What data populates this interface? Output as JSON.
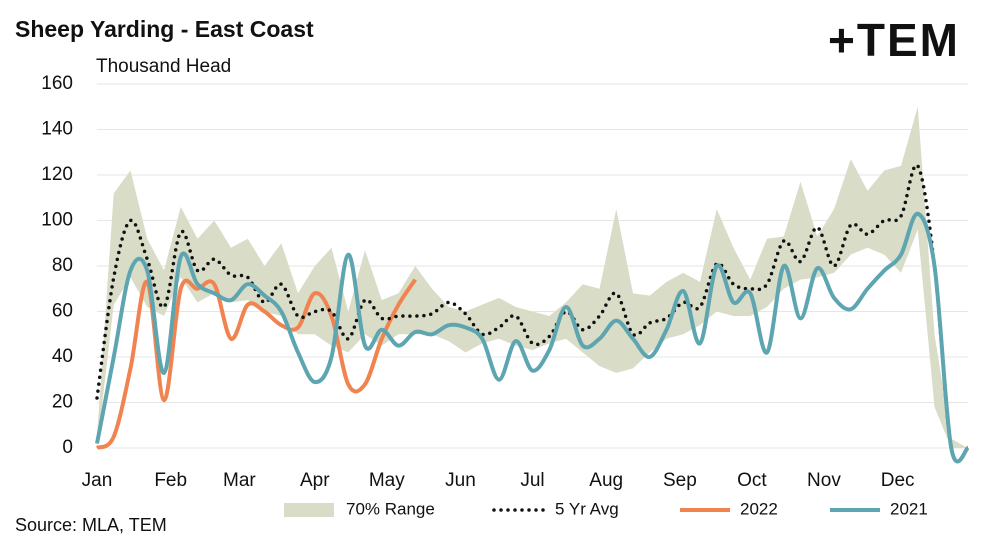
{
  "chart_data": {
    "type": "line",
    "title": "Sheep Yarding - East Coast",
    "subtitle": "Thousand Head",
    "source": "Source: MLA, TEM",
    "logo": "+TEM",
    "x": [
      1,
      2,
      3,
      4,
      5,
      6,
      7,
      8,
      9,
      10,
      11,
      12,
      13,
      14,
      15,
      16,
      17,
      18,
      19,
      20,
      21,
      22,
      23,
      24,
      25,
      26,
      27,
      28,
      29,
      30,
      31,
      32,
      33,
      34,
      35,
      36,
      37,
      38,
      39,
      40,
      41,
      42,
      43,
      44,
      45,
      46,
      47,
      48,
      49,
      50,
      51,
      52,
      53
    ],
    "xlim": [
      1,
      53
    ],
    "xticks": [
      {
        "value": 1,
        "label": "Jan"
      },
      {
        "value": 5.4,
        "label": "Feb"
      },
      {
        "value": 9.5,
        "label": "Mar"
      },
      {
        "value": 14,
        "label": "Apr"
      },
      {
        "value": 18.3,
        "label": "May"
      },
      {
        "value": 22.7,
        "label": "Jun"
      },
      {
        "value": 27,
        "label": "Jul"
      },
      {
        "value": 31.4,
        "label": "Aug"
      },
      {
        "value": 35.8,
        "label": "Sep"
      },
      {
        "value": 40.1,
        "label": "Oct"
      },
      {
        "value": 44.4,
        "label": "Nov"
      },
      {
        "value": 48.8,
        "label": "Dec"
      }
    ],
    "ylim": [
      0,
      160
    ],
    "yticks": [
      0,
      20,
      40,
      60,
      80,
      100,
      120,
      140,
      160
    ],
    "grid": true,
    "range": {
      "name": "70% Range",
      "color": "#d9dcc6",
      "low": [
        0,
        63,
        75,
        62,
        58,
        75,
        64,
        68,
        64,
        65,
        60,
        58,
        50,
        50,
        45,
        42,
        50,
        45,
        50,
        50,
        50,
        47,
        42,
        46,
        48,
        45,
        43,
        46,
        48,
        42,
        36,
        33,
        35,
        42,
        48,
        50,
        54,
        60,
        58,
        58,
        62,
        70,
        74,
        75,
        77,
        85,
        88,
        85,
        77,
        96,
        18,
        0,
        0
      ],
      "high": [
        5,
        112,
        122,
        92,
        78,
        106,
        92,
        100,
        88,
        92,
        80,
        90,
        68,
        80,
        88,
        60,
        87,
        65,
        68,
        80,
        70,
        62,
        60,
        63,
        66,
        62,
        60,
        58,
        64,
        72,
        70,
        105,
        68,
        67,
        73,
        77,
        73,
        105,
        88,
        74,
        92,
        93,
        117,
        93,
        105,
        127,
        113,
        122,
        124,
        150,
        50,
        4,
        0
      ]
    },
    "series": [
      {
        "name": "5 Yr Avg",
        "color": "#111111",
        "style": "dotted",
        "values": [
          22,
          75,
          100,
          83,
          62,
          95,
          78,
          83,
          76,
          75,
          64,
          72,
          58,
          60,
          60,
          48,
          65,
          57,
          58,
          58,
          59,
          64,
          59,
          50,
          53,
          58,
          46,
          49,
          60,
          52,
          58,
          68,
          50,
          55,
          57,
          64,
          62,
          81,
          72,
          70,
          72,
          91,
          82,
          97,
          80,
          98,
          94,
          100,
          102,
          124,
          80,
          0,
          0
        ]
      },
      {
        "name": "2022",
        "color": "#f0834f",
        "style": "solid",
        "values": [
          0,
          5,
          35,
          73,
          21,
          70,
          70,
          72,
          48,
          63,
          60,
          54,
          53,
          68,
          58,
          28,
          28,
          48,
          63,
          74,
          null,
          null,
          null,
          null,
          null,
          null,
          null,
          null,
          null,
          null,
          null,
          null,
          null,
          null,
          null,
          null,
          null,
          null,
          null,
          null,
          null,
          null,
          null,
          null,
          null,
          null,
          null,
          null,
          null,
          null,
          null,
          null,
          null
        ]
      },
      {
        "name": "2021",
        "color": "#5da5b0",
        "style": "solid",
        "values": [
          2,
          40,
          78,
          78,
          33,
          84,
          72,
          68,
          65,
          72,
          67,
          60,
          42,
          29,
          40,
          85,
          45,
          52,
          45,
          51,
          50,
          54,
          53,
          48,
          30,
          47,
          34,
          43,
          62,
          45,
          48,
          56,
          48,
          40,
          52,
          69,
          46,
          80,
          64,
          68,
          42,
          80,
          57,
          79,
          66,
          61,
          70,
          78,
          85,
          103,
          80,
          0,
          0
        ]
      }
    ]
  }
}
